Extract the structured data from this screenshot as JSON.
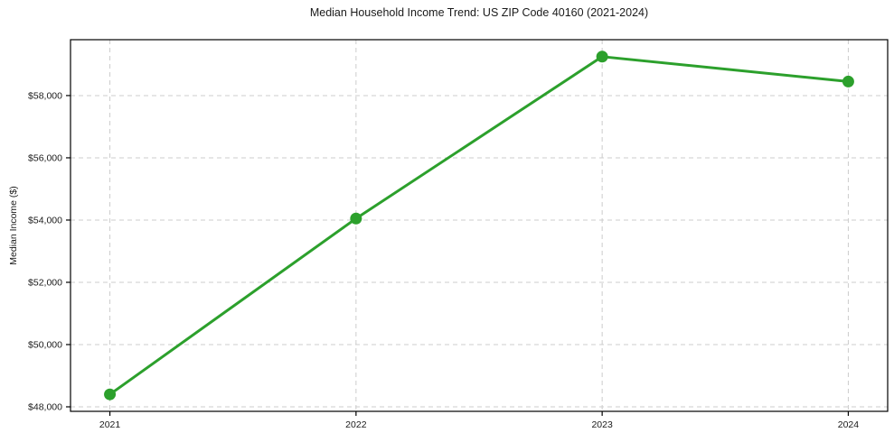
{
  "chart_data": {
    "type": "line",
    "title": "Median Household Income Trend: US ZIP Code 40160 (2021-2024)",
    "xlabel": "",
    "ylabel": "Median Income ($)",
    "categories": [
      "2021",
      "2022",
      "2023",
      "2024"
    ],
    "series": [
      {
        "name": "Median Household Income",
        "values": [
          48400,
          54050,
          59250,
          58450
        ],
        "color": "#2ca02c",
        "marker": "circle"
      }
    ],
    "ylim": [
      47855,
      59795
    ],
    "yticks": [
      48000,
      50000,
      52000,
      54000,
      56000,
      58000
    ],
    "ytick_labels": [
      "$48,000",
      "$50,000",
      "$52,000",
      "$54,000",
      "$56,000",
      "$58,000"
    ],
    "grid": "dashed-both-axes",
    "legend": "none",
    "colors": {
      "line": "#2ca02c",
      "grid": "#cccccc",
      "spine": "#000000",
      "text": "#1a1a1a",
      "background": "#ffffff"
    }
  }
}
